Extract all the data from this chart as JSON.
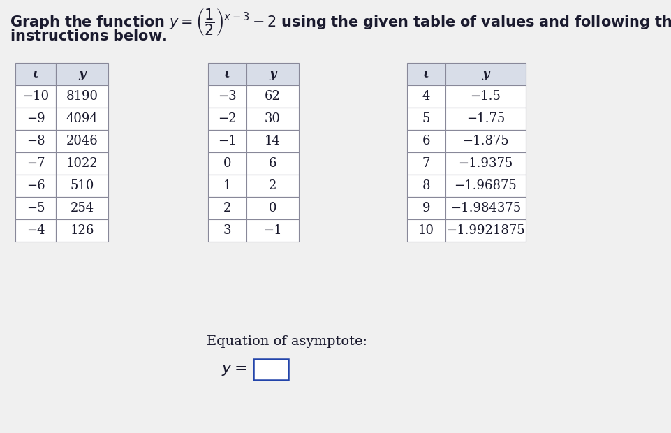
{
  "table1": {
    "headers": [
      "ι",
      "y"
    ],
    "rows": [
      [
        "−10",
        "8190"
      ],
      [
        "−9",
        "4094"
      ],
      [
        "−8",
        "2046"
      ],
      [
        "−7",
        "1022"
      ],
      [
        "−6",
        "510"
      ],
      [
        "−5",
        "254"
      ],
      [
        "−4",
        "126"
      ]
    ]
  },
  "table2": {
    "headers": [
      "ι",
      "y"
    ],
    "rows": [
      [
        "−3",
        "62"
      ],
      [
        "−2",
        "30"
      ],
      [
        "−1",
        "14"
      ],
      [
        "0",
        "6"
      ],
      [
        "1",
        "2"
      ],
      [
        "2",
        "0"
      ],
      [
        "3",
        "−1"
      ]
    ]
  },
  "table3": {
    "headers": [
      "ι",
      "y"
    ],
    "rows": [
      [
        "4",
        "−1.5"
      ],
      [
        "5",
        "−1.75"
      ],
      [
        "6",
        "−1.875"
      ],
      [
        "7",
        "−1.9375"
      ],
      [
        "8",
        "−1.96875"
      ],
      [
        "9",
        "−1.984375"
      ],
      [
        "10",
        "−1.9921875"
      ]
    ]
  },
  "asymptote_label": "Equation of asymptote:",
  "bg_color": "#f0f0f0",
  "table_bg": "#ffffff",
  "header_bg": "#d8dde8",
  "border_color": "#888899",
  "text_color": "#1a1a2e",
  "title_fontsize": 15,
  "table_fontsize": 13
}
